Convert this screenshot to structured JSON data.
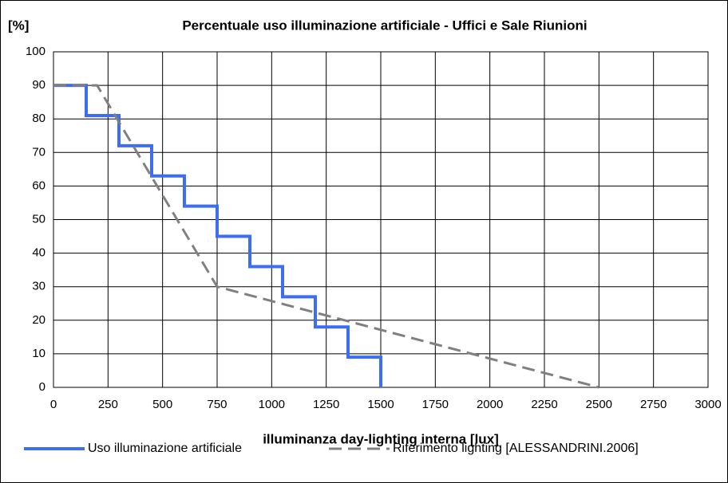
{
  "chart_data": {
    "type": "line",
    "title": "Percentuale uso illuminazione artificiale - Uffici e Sale Riunioni",
    "y_label": "[%]",
    "x_label": "illuminanza day-lighting interna [lux]",
    "series": [
      {
        "name": "Uso illuminazione artificiale",
        "color": "#3d6df2",
        "dash": false,
        "x": [
          0,
          150,
          150,
          300,
          300,
          450,
          450,
          600,
          600,
          750,
          750,
          900,
          900,
          1050,
          1050,
          1200,
          1200,
          1350,
          1350,
          1500,
          1500
        ],
        "values": [
          90,
          90,
          81,
          81,
          72,
          72,
          63,
          63,
          54,
          54,
          45,
          45,
          36,
          36,
          27,
          27,
          18,
          18,
          9,
          9,
          0
        ]
      },
      {
        "name": "Riferimento lighting [ALESSANDRINI.2006]",
        "color": "#808080",
        "dash": true,
        "x": [
          0,
          200,
          750,
          2500
        ],
        "values": [
          90,
          90,
          30,
          0
        ]
      }
    ],
    "xlim": [
      0,
      3000
    ],
    "xticks": [
      0,
      250,
      500,
      750,
      1000,
      1250,
      1500,
      1750,
      2000,
      2250,
      2500,
      2750,
      3000
    ],
    "ylim": [
      0,
      100
    ],
    "yticks": [
      0,
      10,
      20,
      30,
      40,
      50,
      60,
      70,
      80,
      90,
      100
    ],
    "grid": true,
    "legend": "bottom"
  }
}
